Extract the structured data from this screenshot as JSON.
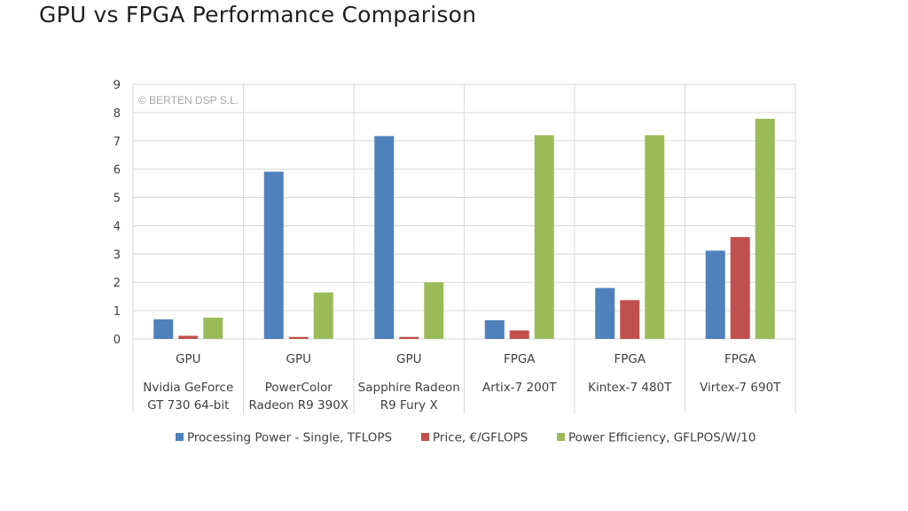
{
  "slide": {
    "title": "GPU vs FPGA Performance Comparison"
  },
  "chart_data": {
    "type": "bar",
    "title": "",
    "xlabel": "",
    "ylabel": "",
    "ylim": [
      0,
      9
    ],
    "yticks": [
      0,
      1,
      2,
      3,
      4,
      5,
      6,
      7,
      8,
      9
    ],
    "grid": true,
    "legend_position": "bottom",
    "watermark": "© BERTEN DSP S.L.",
    "categories": [
      {
        "group": "GPU",
        "label_lines": [
          "Nvidia GeForce",
          "GT 730 64-bit"
        ]
      },
      {
        "group": "GPU",
        "label_lines": [
          "PowerColor",
          "Radeon R9 390X"
        ]
      },
      {
        "group": "GPU",
        "label_lines": [
          "Sapphire Radeon",
          "R9 Fury X"
        ]
      },
      {
        "group": "FPGA",
        "label_lines": [
          "Artix-7 200T"
        ]
      },
      {
        "group": "FPGA",
        "label_lines": [
          "Kintex-7 480T"
        ]
      },
      {
        "group": "FPGA",
        "label_lines": [
          "Virtex-7 690T"
        ]
      }
    ],
    "series": [
      {
        "name": "Processing Power - Single, TFLOPS",
        "color": "#4f81bd",
        "values": [
          0.69,
          5.91,
          7.17,
          0.66,
          1.8,
          3.12
        ]
      },
      {
        "name": "Price, €/GFLOPS",
        "color": "#c0504d",
        "values": [
          0.11,
          0.07,
          0.07,
          0.3,
          1.37,
          3.6
        ]
      },
      {
        "name": "Power Efficiency, GFLPOS/W/10",
        "color": "#9bbb59",
        "values": [
          0.75,
          1.64,
          2.0,
          7.2,
          7.2,
          7.78
        ]
      }
    ]
  }
}
